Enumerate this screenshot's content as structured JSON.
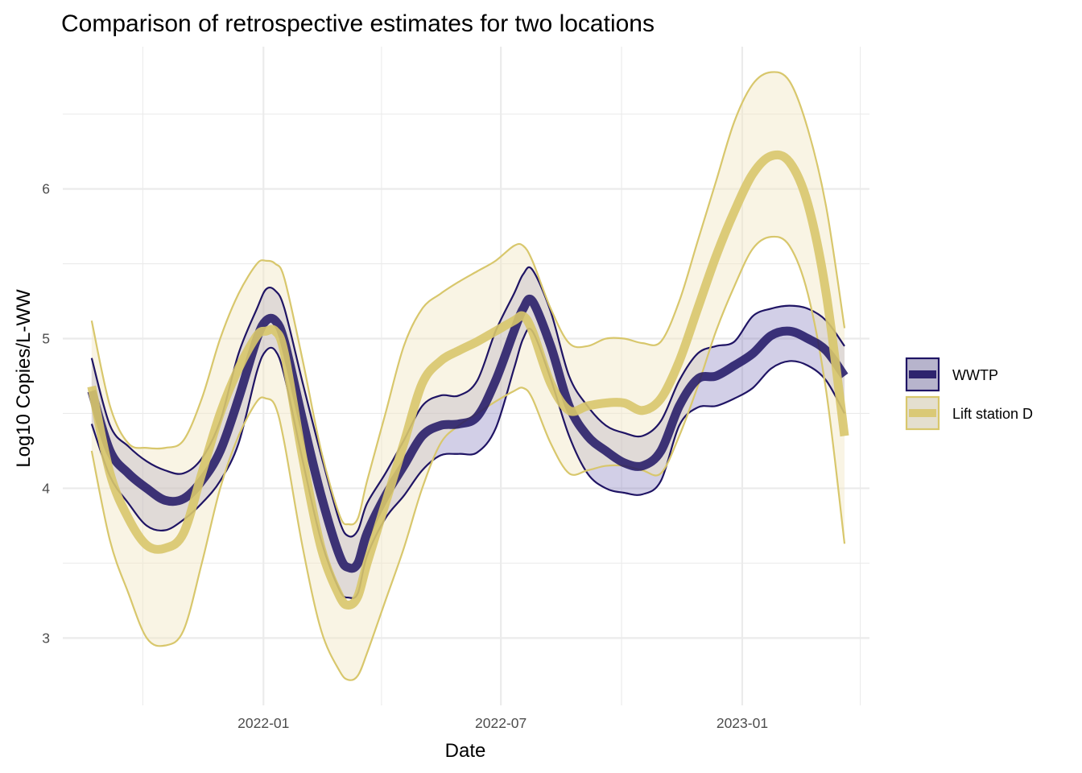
{
  "chart_data": {
    "type": "line",
    "title": "Comparison of retrospective estimates for two locations",
    "xlabel": "Date",
    "ylabel": "Log10 Copies/L-WW",
    "x_ticks": [
      {
        "date": "2022-01-01",
        "label": "2022-01"
      },
      {
        "date": "2022-07-01",
        "label": "2022-07"
      },
      {
        "date": "2023-01-01",
        "label": "2023-01"
      }
    ],
    "x_minor_ticks": [
      "2021-10-01",
      "2022-04-01",
      "2022-10-01",
      "2023-04-01"
    ],
    "xlim": [
      "2021-08-01",
      "2023-04-08"
    ],
    "y_ticks": [
      3,
      4,
      5,
      6
    ],
    "ylim": [
      2.55,
      6.95
    ],
    "grid": true,
    "legend_position": "right",
    "colors": {
      "wwtp": "#1f1464",
      "lift": "#d8c76c"
    },
    "series": [
      {
        "name": "WWTP",
        "color": "#1f1464",
        "ribbon_fill": "#6a5fb0",
        "x": [
          "2021-08-23",
          "2021-09-06",
          "2021-09-20",
          "2021-10-04",
          "2021-10-18",
          "2021-11-01",
          "2021-11-15",
          "2021-11-29",
          "2021-12-13",
          "2021-12-27",
          "2022-01-03",
          "2022-01-10",
          "2022-01-17",
          "2022-01-31",
          "2022-02-14",
          "2022-02-28",
          "2022-03-07",
          "2022-03-14",
          "2022-03-21",
          "2022-04-04",
          "2022-04-18",
          "2022-05-02",
          "2022-05-16",
          "2022-05-30",
          "2022-06-13",
          "2022-06-27",
          "2022-07-11",
          "2022-07-18",
          "2022-07-25",
          "2022-08-08",
          "2022-08-22",
          "2022-09-05",
          "2022-09-19",
          "2022-10-03",
          "2022-10-17",
          "2022-10-31",
          "2022-11-14",
          "2022-11-28",
          "2022-12-12",
          "2022-12-26",
          "2023-01-09",
          "2023-01-23",
          "2023-02-06",
          "2023-02-20",
          "2023-03-06",
          "2023-03-20"
        ],
        "y": [
          4.65,
          4.25,
          4.1,
          4.0,
          3.92,
          3.93,
          4.05,
          4.25,
          4.6,
          5.0,
          5.12,
          5.12,
          4.98,
          4.45,
          3.95,
          3.55,
          3.47,
          3.5,
          3.7,
          3.95,
          4.15,
          4.35,
          4.42,
          4.43,
          4.48,
          4.72,
          5.05,
          5.2,
          5.25,
          4.95,
          4.55,
          4.35,
          4.25,
          4.17,
          4.15,
          4.25,
          4.55,
          4.73,
          4.75,
          4.82,
          4.9,
          5.02,
          5.05,
          5.0,
          4.92,
          4.75
        ],
        "lower": [
          4.43,
          4.08,
          3.9,
          3.75,
          3.72,
          3.79,
          3.9,
          4.05,
          4.3,
          4.78,
          4.92,
          4.92,
          4.75,
          4.18,
          3.65,
          3.32,
          3.27,
          3.3,
          3.55,
          3.8,
          3.95,
          4.12,
          4.22,
          4.23,
          4.24,
          4.4,
          4.8,
          5.0,
          5.05,
          4.73,
          4.35,
          4.1,
          4.0,
          3.97,
          3.96,
          4.05,
          4.42,
          4.54,
          4.55,
          4.6,
          4.67,
          4.8,
          4.85,
          4.82,
          4.72,
          4.5
        ],
        "upper": [
          4.87,
          4.42,
          4.28,
          4.18,
          4.12,
          4.1,
          4.2,
          4.45,
          4.9,
          5.2,
          5.33,
          5.32,
          5.2,
          4.7,
          4.22,
          3.78,
          3.68,
          3.72,
          3.9,
          4.1,
          4.32,
          4.55,
          4.62,
          4.62,
          4.72,
          5.05,
          5.3,
          5.43,
          5.46,
          5.18,
          4.75,
          4.55,
          4.42,
          4.37,
          4.35,
          4.45,
          4.72,
          4.9,
          4.95,
          4.98,
          5.15,
          5.2,
          5.22,
          5.2,
          5.12,
          4.95
        ]
      },
      {
        "name": "Lift station D",
        "color": "#d8c76c",
        "ribbon_fill": "#f1e7c4",
        "x": [
          "2021-08-23",
          "2021-09-06",
          "2021-09-20",
          "2021-10-04",
          "2021-10-18",
          "2021-11-01",
          "2021-11-15",
          "2021-11-29",
          "2021-12-13",
          "2021-12-27",
          "2022-01-03",
          "2022-01-10",
          "2022-01-17",
          "2022-01-31",
          "2022-02-14",
          "2022-02-28",
          "2022-03-07",
          "2022-03-14",
          "2022-03-21",
          "2022-04-04",
          "2022-04-18",
          "2022-05-02",
          "2022-05-16",
          "2022-05-30",
          "2022-06-13",
          "2022-06-27",
          "2022-07-11",
          "2022-07-18",
          "2022-07-25",
          "2022-08-08",
          "2022-08-22",
          "2022-09-05",
          "2022-09-19",
          "2022-10-03",
          "2022-10-17",
          "2022-10-31",
          "2022-11-14",
          "2022-11-28",
          "2022-12-12",
          "2022-12-26",
          "2023-01-09",
          "2023-01-23",
          "2023-02-06",
          "2023-02-20",
          "2023-03-06",
          "2023-03-20"
        ],
        "y": [
          4.68,
          4.1,
          3.8,
          3.62,
          3.6,
          3.7,
          4.1,
          4.5,
          4.8,
          5.02,
          5.05,
          5.05,
          4.9,
          4.2,
          3.6,
          3.28,
          3.22,
          3.28,
          3.5,
          3.9,
          4.3,
          4.7,
          4.85,
          4.92,
          4.98,
          5.05,
          5.12,
          5.15,
          5.05,
          4.7,
          4.52,
          4.55,
          4.57,
          4.57,
          4.52,
          4.6,
          4.85,
          5.2,
          5.55,
          5.85,
          6.1,
          6.22,
          6.18,
          5.9,
          5.3,
          4.35
        ],
        "lower": [
          4.25,
          3.65,
          3.3,
          3.0,
          2.95,
          3.05,
          3.5,
          4.0,
          4.35,
          4.58,
          4.6,
          4.55,
          4.3,
          3.6,
          3.05,
          2.78,
          2.72,
          2.75,
          2.9,
          3.25,
          3.6,
          4.0,
          4.3,
          4.42,
          4.5,
          4.58,
          4.65,
          4.67,
          4.6,
          4.3,
          4.1,
          4.12,
          4.15,
          4.15,
          4.12,
          4.1,
          4.35,
          4.68,
          5.05,
          5.35,
          5.6,
          5.68,
          5.62,
          5.3,
          4.65,
          3.63
        ],
        "upper": [
          5.12,
          4.55,
          4.3,
          4.27,
          4.27,
          4.32,
          4.6,
          5.0,
          5.3,
          5.5,
          5.52,
          5.5,
          5.4,
          4.85,
          4.25,
          3.82,
          3.76,
          3.8,
          4.05,
          4.5,
          4.95,
          5.2,
          5.3,
          5.38,
          5.45,
          5.52,
          5.62,
          5.62,
          5.52,
          5.2,
          4.97,
          4.95,
          5.0,
          5.0,
          4.97,
          4.98,
          5.25,
          5.65,
          6.05,
          6.45,
          6.7,
          6.78,
          6.72,
          6.4,
          5.88,
          5.07
        ]
      }
    ]
  }
}
